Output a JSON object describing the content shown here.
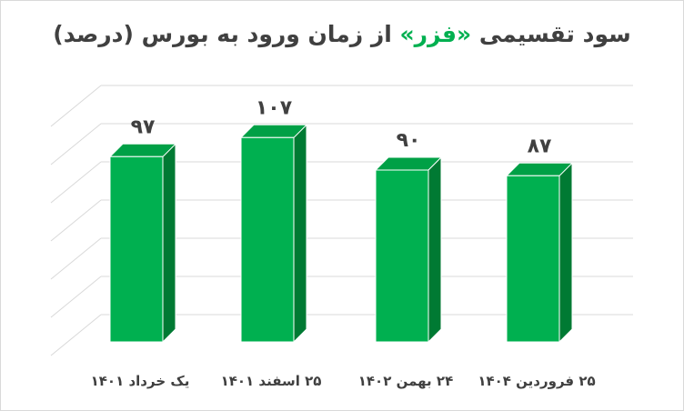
{
  "chart_data": {
    "type": "bar",
    "title_parts": [
      "سود تقسیمی ",
      "«فزر»",
      " از زمان ورود به بورس (درصد)"
    ],
    "categories": [
      "یک خرداد ۱۴۰۱",
      "۲۵ اسفند ۱۴۰۱",
      "۲۴ بهمن ۱۴۰۲",
      "۲۵ فروردین ۱۴۰۴"
    ],
    "values": [
      97,
      107,
      90,
      87
    ],
    "value_labels": [
      "۹۷",
      "۱۰۷",
      "۹۰",
      "۸۷"
    ],
    "ylim": [
      0,
      120
    ],
    "grid": true,
    "legend": "none",
    "colors": {
      "bar_front": "#00b050",
      "bar_side": "#007a33",
      "bar_top": "#00a046",
      "bar_edge": "#ffffff",
      "grid": "#d9d9d9",
      "title_highlight": "#00b050",
      "text": "#404040"
    }
  }
}
